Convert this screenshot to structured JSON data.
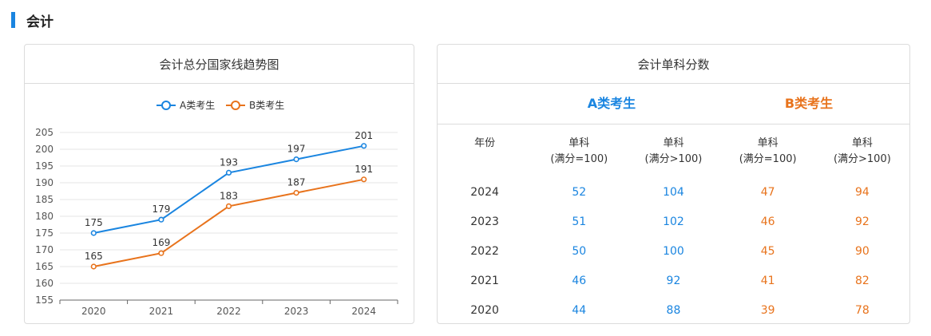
{
  "section": {
    "title": "会计"
  },
  "left_card": {
    "title": "会计总分国家线趋势图"
  },
  "right_card": {
    "title": "会计单科分数",
    "group_a": "A类考生",
    "group_b": "B类考生",
    "columns": [
      "年份",
      "单科",
      "(满分=100)",
      "单科",
      "(满分>100)",
      "单科",
      "(满分=100)",
      "单科",
      "(满分>100)"
    ],
    "header": {
      "year": "年份",
      "a1_line1": "单科",
      "a1_line2": "(满分=100)",
      "a2_line1": "单科",
      "a2_line2": "(满分>100)",
      "b1_line1": "单科",
      "b1_line2": "(满分=100)",
      "b2_line1": "单科",
      "b2_line2": "(满分>100)"
    },
    "rows": [
      {
        "year": "2024",
        "a1": "52",
        "a2": "104",
        "b1": "47",
        "b2": "94"
      },
      {
        "year": "2023",
        "a1": "51",
        "a2": "102",
        "b1": "46",
        "b2": "92"
      },
      {
        "year": "2022",
        "a1": "50",
        "a2": "100",
        "b1": "45",
        "b2": "90"
      },
      {
        "year": "2021",
        "a1": "46",
        "a2": "92",
        "b1": "41",
        "b2": "82"
      },
      {
        "year": "2020",
        "a1": "44",
        "a2": "88",
        "b1": "39",
        "b2": "78"
      }
    ]
  },
  "colors": {
    "accent": "#1a85e0",
    "series_a": "#1a85e0",
    "series_b": "#e8731c"
  },
  "chart_data": {
    "type": "line",
    "title": "会计总分国家线趋势图",
    "categories": [
      "2020",
      "2021",
      "2022",
      "2023",
      "2024"
    ],
    "series": [
      {
        "name": "A类考生",
        "values": [
          175,
          179,
          193,
          197,
          201
        ],
        "color": "#1a85e0"
      },
      {
        "name": "B类考生",
        "values": [
          165,
          169,
          183,
          187,
          191
        ],
        "color": "#e8731c"
      }
    ],
    "ylim": [
      155,
      205
    ],
    "yticks": [
      155,
      160,
      165,
      170,
      175,
      180,
      185,
      190,
      195,
      200,
      205
    ],
    "grid": true,
    "legend": "top-center",
    "data_labels": true
  }
}
